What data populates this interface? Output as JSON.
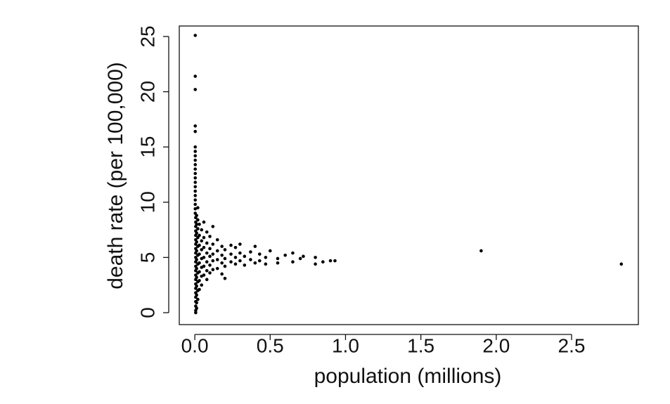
{
  "chart_data": {
    "type": "scatter",
    "x_label": "population (millions)",
    "y_label": "death rate (per 100,000)",
    "color": "#000000",
    "xlim": [
      -0.103,
      2.943
    ],
    "ylim": [
      -1.08,
      25.95
    ],
    "xticks": [
      {
        "value": 0,
        "label": "0.0"
      },
      0.5,
      {
        "value": 1,
        "label": "1.0"
      },
      1.5,
      {
        "value": 2,
        "label": "2.0"
      },
      2.5
    ],
    "yticks": [
      0,
      5,
      10,
      15,
      20,
      25
    ],
    "x": [
      0.003,
      0.003,
      0.003,
      0.003,
      0.003,
      0.003,
      0.003,
      0.003,
      0.003,
      0.003,
      0.003,
      0.003,
      0.003,
      0.003,
      0.003,
      0.003,
      0.003,
      0.003,
      0.003,
      0.003,
      0.003,
      0.006,
      0.006,
      0.006,
      0.006,
      0.006,
      0.006,
      0.006,
      0.006,
      0.006,
      0.006,
      0.006,
      0.006,
      0.006,
      0.006,
      0.006,
      0.006,
      0.006,
      0.006,
      0.006,
      0.006,
      0.006,
      0.006,
      0.006,
      0.012,
      0.012,
      0.012,
      0.012,
      0.012,
      0.012,
      0.012,
      0.012,
      0.012,
      0.012,
      0.012,
      0.012,
      0.02,
      0.02,
      0.02,
      0.02,
      0.02,
      0.02,
      0.02,
      0.02,
      0.02,
      0.02,
      0.02,
      0.03,
      0.03,
      0.03,
      0.03,
      0.03,
      0.03,
      0.03,
      0.03,
      0.045,
      0.045,
      0.045,
      0.045,
      0.045,
      0.045,
      0.045,
      0.06,
      0.06,
      0.06,
      0.06,
      0.06,
      0.06,
      0.08,
      0.08,
      0.08,
      0.08,
      0.08,
      0.08,
      0.1,
      0.1,
      0.1,
      0.1,
      0.1,
      0.12,
      0.12,
      0.12,
      0.12,
      0.12,
      0.15,
      0.15,
      0.15,
      0.15,
      0.18,
      0.18,
      0.18,
      0.18,
      0.2,
      0.2,
      0.2,
      0.2,
      0.24,
      0.24,
      0.24,
      0.27,
      0.27,
      0.27,
      0.3,
      0.3,
      0.3,
      0.33,
      0.33,
      0.37,
      0.37,
      0.4,
      0.4,
      0.43,
      0.43,
      0.47,
      0.47,
      0.5,
      0.55,
      0.55,
      0.6,
      0.65,
      0.65,
      0.7,
      0.72,
      0.8,
      0.8,
      0.85,
      0.9,
      0.93,
      1.9,
      2.83
    ],
    "values": [
      25.1,
      21.4,
      20.2,
      16.9,
      16.4,
      15.0,
      14.6,
      14.2,
      13.8,
      13.4,
      13.0,
      12.6,
      12.2,
      11.8,
      11.4,
      11.0,
      10.6,
      10.2,
      9.8,
      9.4,
      9.0,
      8.6,
      8.2,
      7.8,
      7.4,
      7.0,
      6.6,
      6.2,
      5.8,
      5.4,
      5.0,
      4.6,
      4.2,
      3.8,
      3.4,
      3.0,
      2.6,
      2.2,
      1.8,
      1.4,
      1.0,
      0.6,
      0.2,
      0.0,
      8.8,
      8.0,
      7.2,
      6.4,
      5.6,
      4.8,
      4.0,
      3.2,
      2.4,
      1.6,
      0.9,
      0.4,
      9.5,
      8.4,
      7.6,
      6.8,
      6.0,
      5.2,
      4.4,
      3.6,
      2.8,
      2.0,
      1.2,
      8.0,
      7.0,
      6.1,
      5.3,
      4.5,
      3.7,
      2.9,
      2.1,
      7.5,
      6.5,
      5.7,
      4.9,
      4.1,
      3.3,
      2.5,
      8.2,
      6.8,
      5.9,
      5.0,
      4.2,
      3.4,
      7.3,
      6.3,
      5.4,
      4.6,
      3.8,
      3.0,
      6.9,
      5.8,
      5.1,
      4.3,
      3.6,
      7.8,
      6.2,
      5.3,
      4.7,
      3.9,
      6.6,
      5.6,
      4.8,
      4.0,
      6.0,
      5.2,
      4.5,
      3.5,
      5.7,
      4.9,
      4.2,
      3.1,
      6.1,
      5.3,
      4.6,
      5.9,
      5.0,
      4.4,
      6.2,
      5.4,
      4.7,
      5.1,
      4.3,
      5.5,
      4.8,
      6.0,
      4.5,
      5.3,
      4.7,
      5.0,
      4.4,
      5.6,
      4.9,
      4.5,
      5.2,
      5.4,
      4.6,
      4.9,
      5.1,
      5.0,
      4.4,
      4.6,
      4.7,
      4.7,
      5.6,
      4.4
    ]
  }
}
